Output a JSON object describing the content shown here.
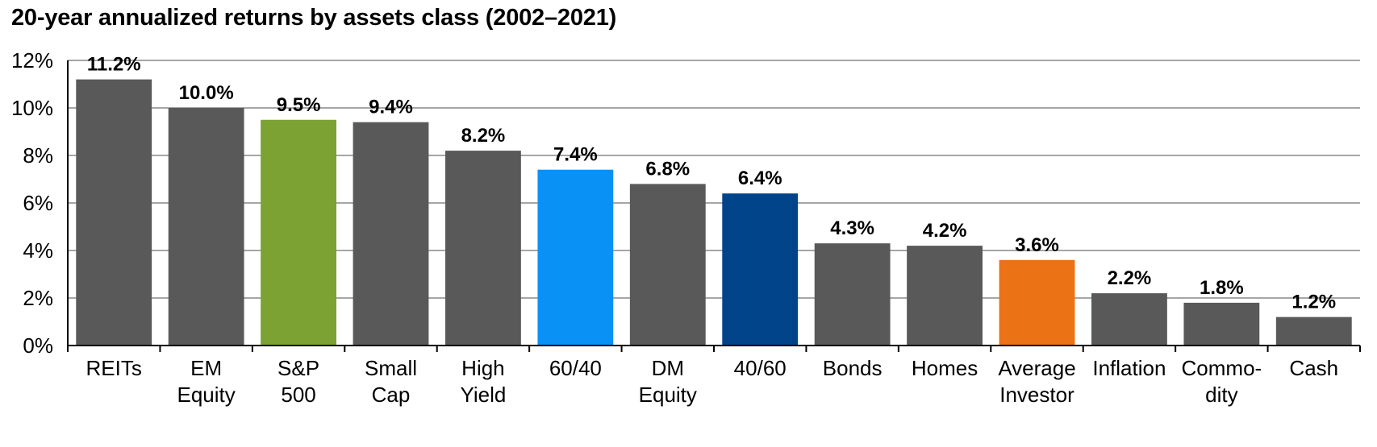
{
  "title": "20-year annualized returns by assets class (2002–2021)",
  "chart_data": {
    "type": "bar",
    "title": "20-year annualized returns by assets class (2002–2021)",
    "xlabel": "",
    "ylabel": "",
    "ylim": [
      0,
      12
    ],
    "yticks": [
      0,
      2,
      4,
      6,
      8,
      10,
      12
    ],
    "ytick_labels": [
      "0%",
      "2%",
      "4%",
      "6%",
      "8%",
      "10%",
      "12%"
    ],
    "grid": true,
    "categories": [
      [
        "REITs"
      ],
      [
        "EM",
        "Equity"
      ],
      [
        "S&P",
        "500"
      ],
      [
        "Small",
        "Cap"
      ],
      [
        "High",
        "Yield"
      ],
      [
        "60/40"
      ],
      [
        "DM",
        "Equity"
      ],
      [
        "40/60"
      ],
      [
        "Bonds"
      ],
      [
        "Homes"
      ],
      [
        "Average",
        "Investor"
      ],
      [
        "Inflation"
      ],
      [
        "Commo-",
        "dity"
      ],
      [
        "Cash"
      ]
    ],
    "values": [
      11.2,
      10.0,
      9.5,
      9.4,
      8.2,
      7.4,
      6.8,
      6.4,
      4.3,
      4.2,
      3.6,
      2.2,
      1.8,
      1.2
    ],
    "data_labels": [
      "11.2%",
      "10.0%",
      "9.5%",
      "9.4%",
      "8.2%",
      "7.4%",
      "6.8%",
      "6.4%",
      "4.3%",
      "4.2%",
      "3.6%",
      "2.2%",
      "1.8%",
      "1.2%"
    ],
    "colors": [
      "#595959",
      "#595959",
      "#7ba232",
      "#595959",
      "#595959",
      "#0a91f5",
      "#595959",
      "#02448a",
      "#595959",
      "#595959",
      "#ec7216",
      "#595959",
      "#595959",
      "#595959"
    ],
    "grid_color": "#a6a6a6"
  }
}
